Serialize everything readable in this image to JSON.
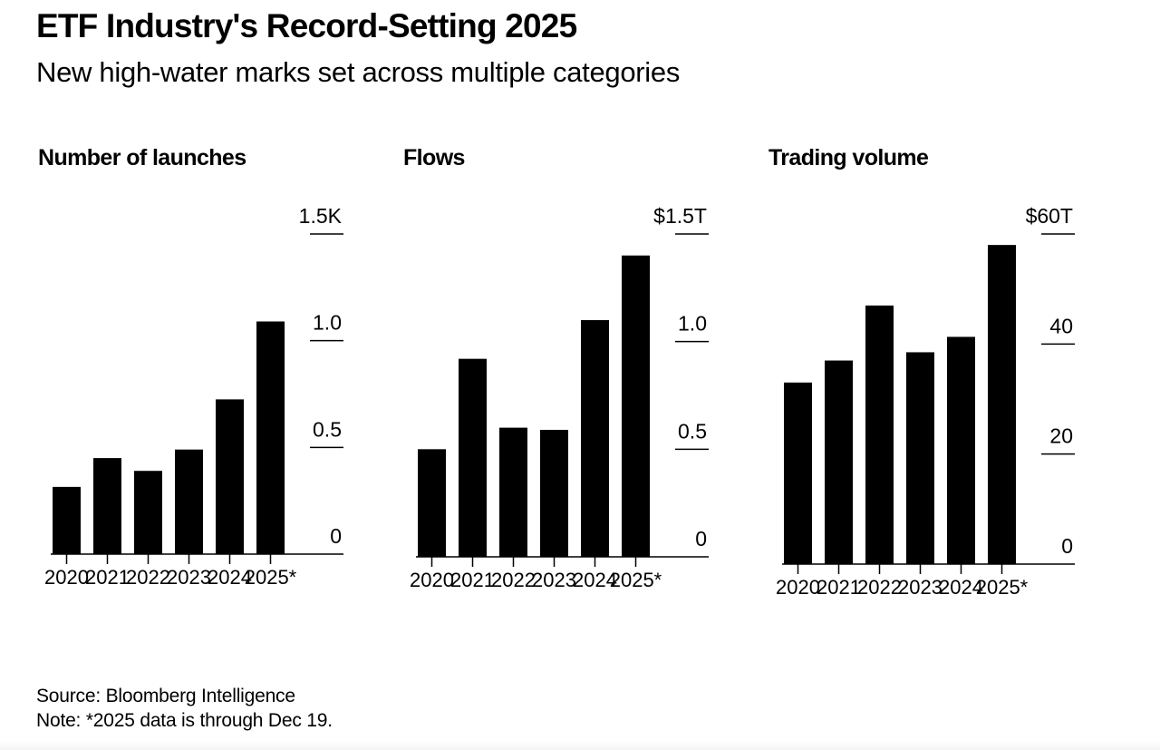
{
  "header": {
    "title": "ETF Industry's Record-Setting 2025",
    "subtitle": "New high-water marks set across multiple categories"
  },
  "footer": {
    "source": "Source: Bloomberg Intelligence",
    "note": "Note: *2025 data is through Dec 19."
  },
  "colors": {
    "bar": "#000000",
    "background": "#ffffff",
    "text": "#000000"
  },
  "chart_data": [
    {
      "type": "bar",
      "title": "Number of launches",
      "xlabel": "",
      "ylabel": "",
      "categories": [
        "2020",
        "2021",
        "2022",
        "2023",
        "2024",
        "2025*"
      ],
      "values": [
        315,
        450,
        390,
        490,
        725,
        1090
      ],
      "units": "K",
      "ylim": [
        0,
        1500
      ],
      "ticks": [
        0,
        500,
        1000,
        1500
      ],
      "tick_labels": [
        "0",
        "0.5",
        "1.0",
        "1.5K"
      ],
      "axis_side": "right",
      "grid": false
    },
    {
      "type": "bar",
      "title": "Flows",
      "xlabel": "",
      "ylabel": "",
      "categories": [
        "2020",
        "2021",
        "2022",
        "2023",
        "2024",
        "2025*"
      ],
      "values": [
        0.5,
        0.92,
        0.6,
        0.59,
        1.1,
        1.4
      ],
      "units": "$T",
      "ylim": [
        0,
        1.5
      ],
      "ticks": [
        0,
        0.5,
        1.0,
        1.5
      ],
      "tick_labels": [
        "0",
        "0.5",
        "1.0",
        "$1.5T"
      ],
      "axis_side": "right",
      "grid": false
    },
    {
      "type": "bar",
      "title": "Trading volume",
      "xlabel": "",
      "ylabel": "",
      "categories": [
        "2020",
        "2021",
        "2022",
        "2023",
        "2024",
        "2025*"
      ],
      "values": [
        33,
        37,
        47,
        38.5,
        41.3,
        58
      ],
      "units": "$T",
      "ylim": [
        0,
        60
      ],
      "ticks": [
        0,
        20,
        40,
        60
      ],
      "tick_labels": [
        "0",
        "20",
        "40",
        "$60T"
      ],
      "axis_side": "right",
      "grid": false
    }
  ]
}
